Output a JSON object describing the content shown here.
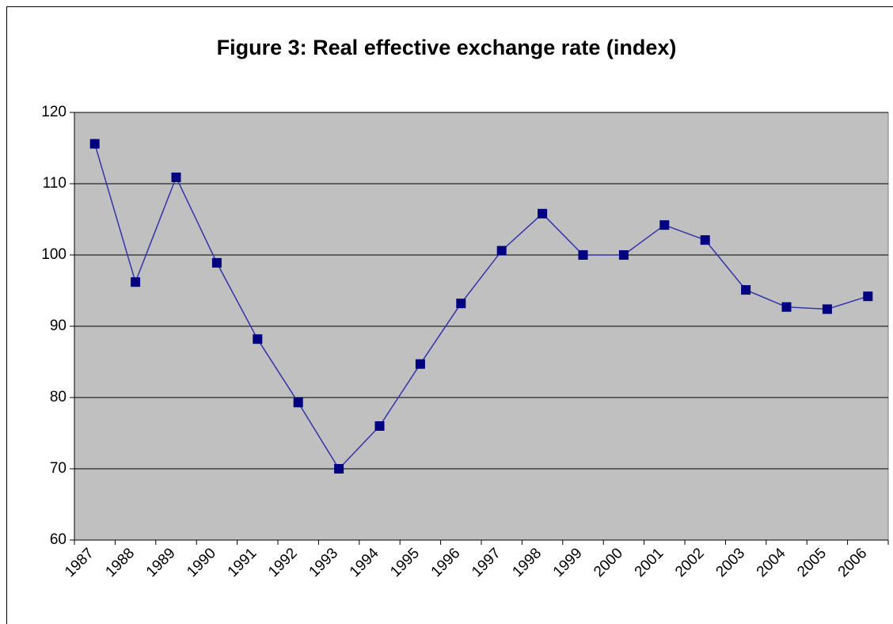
{
  "chart_data": {
    "type": "line",
    "title": "Figure 3: Real effective exchange rate (index)",
    "categories": [
      "1987",
      "1988",
      "1989",
      "1990",
      "1991",
      "1992",
      "1993",
      "1994",
      "1995",
      "1996",
      "1997",
      "1998",
      "1999",
      "2000",
      "2001",
      "2002",
      "2003",
      "2004",
      "2005",
      "2006"
    ],
    "series": [
      {
        "name": "Real effective exchange rate",
        "color": "#000080",
        "values": [
          115.6,
          96.2,
          110.9,
          98.9,
          88.2,
          79.3,
          70.0,
          76.0,
          84.7,
          93.2,
          100.6,
          105.8,
          100.0,
          100.0,
          104.2,
          102.1,
          95.1,
          92.7,
          92.4,
          94.2
        ]
      }
    ],
    "ylim": [
      60,
      120
    ],
    "yticks": [
      60,
      70,
      80,
      90,
      100,
      110,
      120
    ],
    "grid": true,
    "plot_background": "#c0c0c0"
  }
}
